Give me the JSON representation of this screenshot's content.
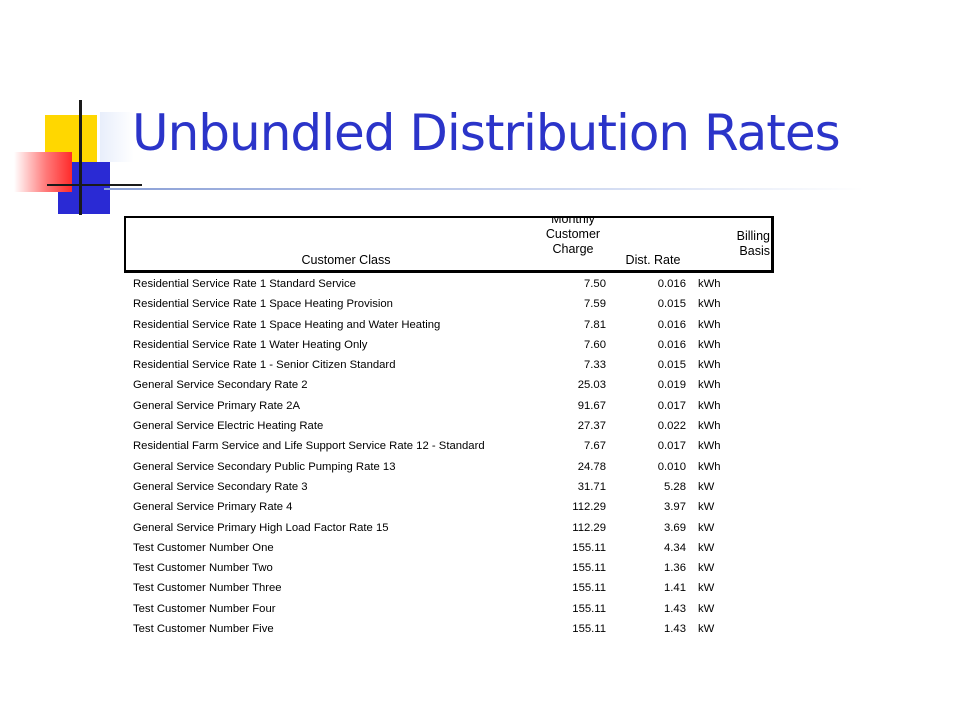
{
  "title": "Unbundled Distribution Rates",
  "colors": {
    "title": "#2b34c9",
    "accent_yellow": "#ffd700",
    "accent_blue": "#2a2ad4",
    "accent_red": "#ff2a2a"
  },
  "table": {
    "headers": {
      "customer_class": "Customer Class",
      "monthly_charge": [
        "Monthly",
        "Customer",
        "Charge"
      ],
      "dist_rate": "Dist. Rate",
      "billing_basis": [
        "Billing",
        "Basis"
      ]
    },
    "rows": [
      {
        "customer_class": "Residential Service Rate 1 Standard Service",
        "monthly_charge": "7.50",
        "dist_rate": "0.016",
        "billing_basis": "kWh"
      },
      {
        "customer_class": "Residential Service Rate 1 Space Heating Provision",
        "monthly_charge": "7.59",
        "dist_rate": "0.015",
        "billing_basis": "kWh"
      },
      {
        "customer_class": "Residential Service Rate 1 Space Heating and Water Heating",
        "monthly_charge": "7.81",
        "dist_rate": "0.016",
        "billing_basis": "kWh"
      },
      {
        "customer_class": "Residential Service Rate 1 Water Heating Only",
        "monthly_charge": "7.60",
        "dist_rate": "0.016",
        "billing_basis": "kWh"
      },
      {
        "customer_class": "Residential Service Rate 1 - Senior Citizen Standard",
        "monthly_charge": "7.33",
        "dist_rate": "0.015",
        "billing_basis": "kWh"
      },
      {
        "customer_class": "General Service Secondary Rate 2",
        "monthly_charge": "25.03",
        "dist_rate": "0.019",
        "billing_basis": "kWh"
      },
      {
        "customer_class": "General Service Primary Rate 2A",
        "monthly_charge": "91.67",
        "dist_rate": "0.017",
        "billing_basis": "kWh"
      },
      {
        "customer_class": "General Service Electric Heating Rate",
        "monthly_charge": "27.37",
        "dist_rate": "0.022",
        "billing_basis": "kWh"
      },
      {
        "customer_class": "Residential Farm Service and Life Support Service Rate 12 - Standard",
        "monthly_charge": "7.67",
        "dist_rate": "0.017",
        "billing_basis": "kWh"
      },
      {
        "customer_class": "General Service Secondary Public Pumping Rate 13",
        "monthly_charge": "24.78",
        "dist_rate": "0.010",
        "billing_basis": "kWh"
      },
      {
        "customer_class": "General Service Secondary Rate 3",
        "monthly_charge": "31.71",
        "dist_rate": "5.28",
        "billing_basis": "kW"
      },
      {
        "customer_class": "General Service Primary Rate 4",
        "monthly_charge": "112.29",
        "dist_rate": "3.97",
        "billing_basis": "kW"
      },
      {
        "customer_class": "General Service Primary High Load Factor Rate 15",
        "monthly_charge": "112.29",
        "dist_rate": "3.69",
        "billing_basis": "kW"
      },
      {
        "customer_class": "Test Customer Number One",
        "monthly_charge": "155.11",
        "dist_rate": "4.34",
        "billing_basis": "kW"
      },
      {
        "customer_class": "Test Customer Number Two",
        "monthly_charge": "155.11",
        "dist_rate": "1.36",
        "billing_basis": "kW"
      },
      {
        "customer_class": "Test Customer Number Three",
        "monthly_charge": "155.11",
        "dist_rate": "1.41",
        "billing_basis": "kW"
      },
      {
        "customer_class": "Test Customer Number Four",
        "monthly_charge": "155.11",
        "dist_rate": "1.43",
        "billing_basis": "kW"
      },
      {
        "customer_class": "Test Customer Number Five",
        "monthly_charge": "155.11",
        "dist_rate": "1.43",
        "billing_basis": "kW"
      }
    ]
  }
}
